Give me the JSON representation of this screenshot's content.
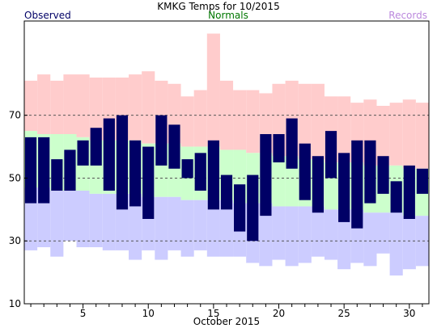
{
  "chart_data": {
    "type": "bar",
    "title": "KMKG Temps for 10/2015",
    "xlabel": "October 2015",
    "ylabel": "",
    "legend": {
      "observed": "Observed",
      "normals": "Normals",
      "records": "Records",
      "placement": "top"
    },
    "ylim": [
      10,
      100
    ],
    "xlim": [
      0.5,
      31.5
    ],
    "y_ticks": [
      10,
      30,
      50,
      70
    ],
    "x_ticks": [
      5,
      10,
      15,
      20,
      25,
      30
    ],
    "gridlines_y": [
      30,
      50,
      70
    ],
    "days": [
      1,
      2,
      3,
      4,
      5,
      6,
      7,
      8,
      9,
      10,
      11,
      12,
      13,
      14,
      15,
      16,
      17,
      18,
      19,
      20,
      21,
      22,
      23,
      24,
      25,
      26,
      27,
      28,
      29,
      30,
      31
    ],
    "series": [
      {
        "name": "Records",
        "role": "record_high",
        "values": [
          81,
          83,
          81,
          83,
          83,
          82,
          82,
          82,
          83,
          84,
          81,
          80,
          76,
          78,
          96,
          81,
          78,
          78,
          77,
          80,
          81,
          80,
          80,
          76,
          76,
          74,
          75,
          73,
          74,
          75,
          74
        ]
      },
      {
        "name": "Records",
        "role": "record_low",
        "values": [
          27,
          28,
          25,
          30,
          28,
          28,
          27,
          27,
          24,
          27,
          24,
          27,
          25,
          27,
          25,
          25,
          25,
          23,
          22,
          24,
          22,
          23,
          25,
          24,
          21,
          23,
          22,
          26,
          19,
          21,
          22
        ]
      },
      {
        "name": "Normals",
        "role": "normal_high",
        "values": [
          65,
          64,
          64,
          64,
          63,
          62,
          62,
          62,
          62,
          61,
          61,
          61,
          60,
          60,
          60,
          59,
          59,
          58,
          58,
          57,
          57,
          56,
          56,
          55,
          55,
          55,
          54,
          54,
          54,
          53,
          53
        ]
      },
      {
        "name": "Normals",
        "role": "normal_low",
        "values": [
          47,
          47,
          46,
          46,
          46,
          45,
          45,
          45,
          45,
          44,
          44,
          44,
          43,
          43,
          43,
          43,
          42,
          42,
          42,
          41,
          41,
          41,
          41,
          40,
          40,
          40,
          39,
          39,
          39,
          38,
          38
        ]
      },
      {
        "name": "Observed",
        "role": "observed_high",
        "values": [
          63,
          63,
          56,
          59,
          62,
          66,
          69,
          70,
          62,
          60,
          70,
          67,
          56,
          58,
          62,
          51,
          48,
          51,
          64,
          64,
          69,
          61,
          57,
          65,
          58,
          62,
          62,
          57,
          49,
          54,
          53
        ]
      },
      {
        "name": "Observed",
        "role": "observed_low",
        "values": [
          42,
          42,
          46,
          46,
          54,
          54,
          46,
          40,
          41,
          37,
          54,
          53,
          50,
          46,
          40,
          40,
          33,
          30,
          38,
          55,
          53,
          43,
          39,
          50,
          36,
          34,
          42,
          45,
          39,
          37,
          45
        ]
      }
    ],
    "colors": {
      "records": "#ffcccc",
      "normals": "#ccffcc",
      "record_low": "#ccccff",
      "observed": "#000066",
      "observed_legend": "#000066",
      "normals_legend": "#007700",
      "records_legend": "#bb88dd",
      "grid": "#555555"
    },
    "grid": true
  }
}
